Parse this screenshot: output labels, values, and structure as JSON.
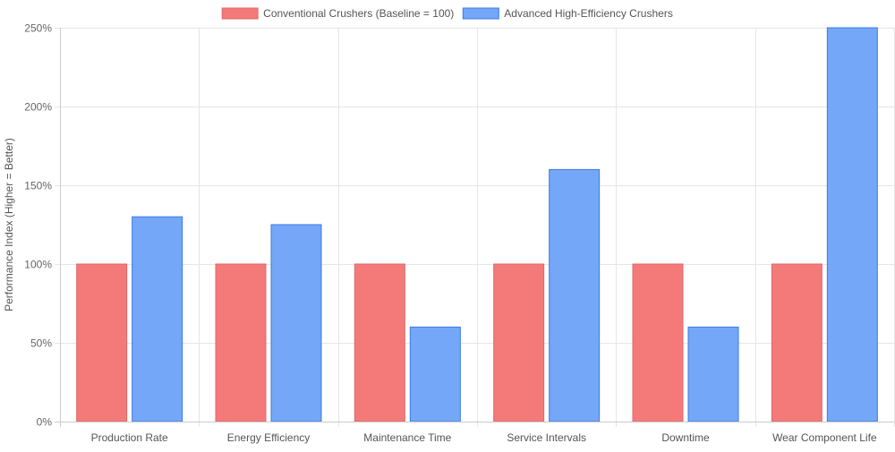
{
  "chart_data": {
    "type": "bar",
    "categories": [
      "Production Rate",
      "Energy Efficiency",
      "Maintenance Time",
      "Service Intervals",
      "Downtime",
      "Wear Component Life"
    ],
    "series": [
      {
        "name": "Conventional Crushers (Baseline = 100)",
        "values": [
          100,
          100,
          100,
          100,
          100,
          100
        ],
        "color": "#f47a7a",
        "border_color": "#e06868"
      },
      {
        "name": "Advanced High-Efficiency Crushers",
        "values": [
          130,
          125,
          60,
          160,
          60,
          250
        ],
        "color": "#74a7f8",
        "border_color": "#3b7be0"
      }
    ],
    "ylabel": "Performance Index (Higher = Better)",
    "xlabel": "",
    "ylim": [
      0,
      250
    ],
    "y_ticks": [
      0,
      50,
      100,
      150,
      200,
      250
    ],
    "y_tick_labels": [
      "0%",
      "50%",
      "100%",
      "150%",
      "200%",
      "250%"
    ],
    "grid": true,
    "legend_position": "top-center"
  }
}
